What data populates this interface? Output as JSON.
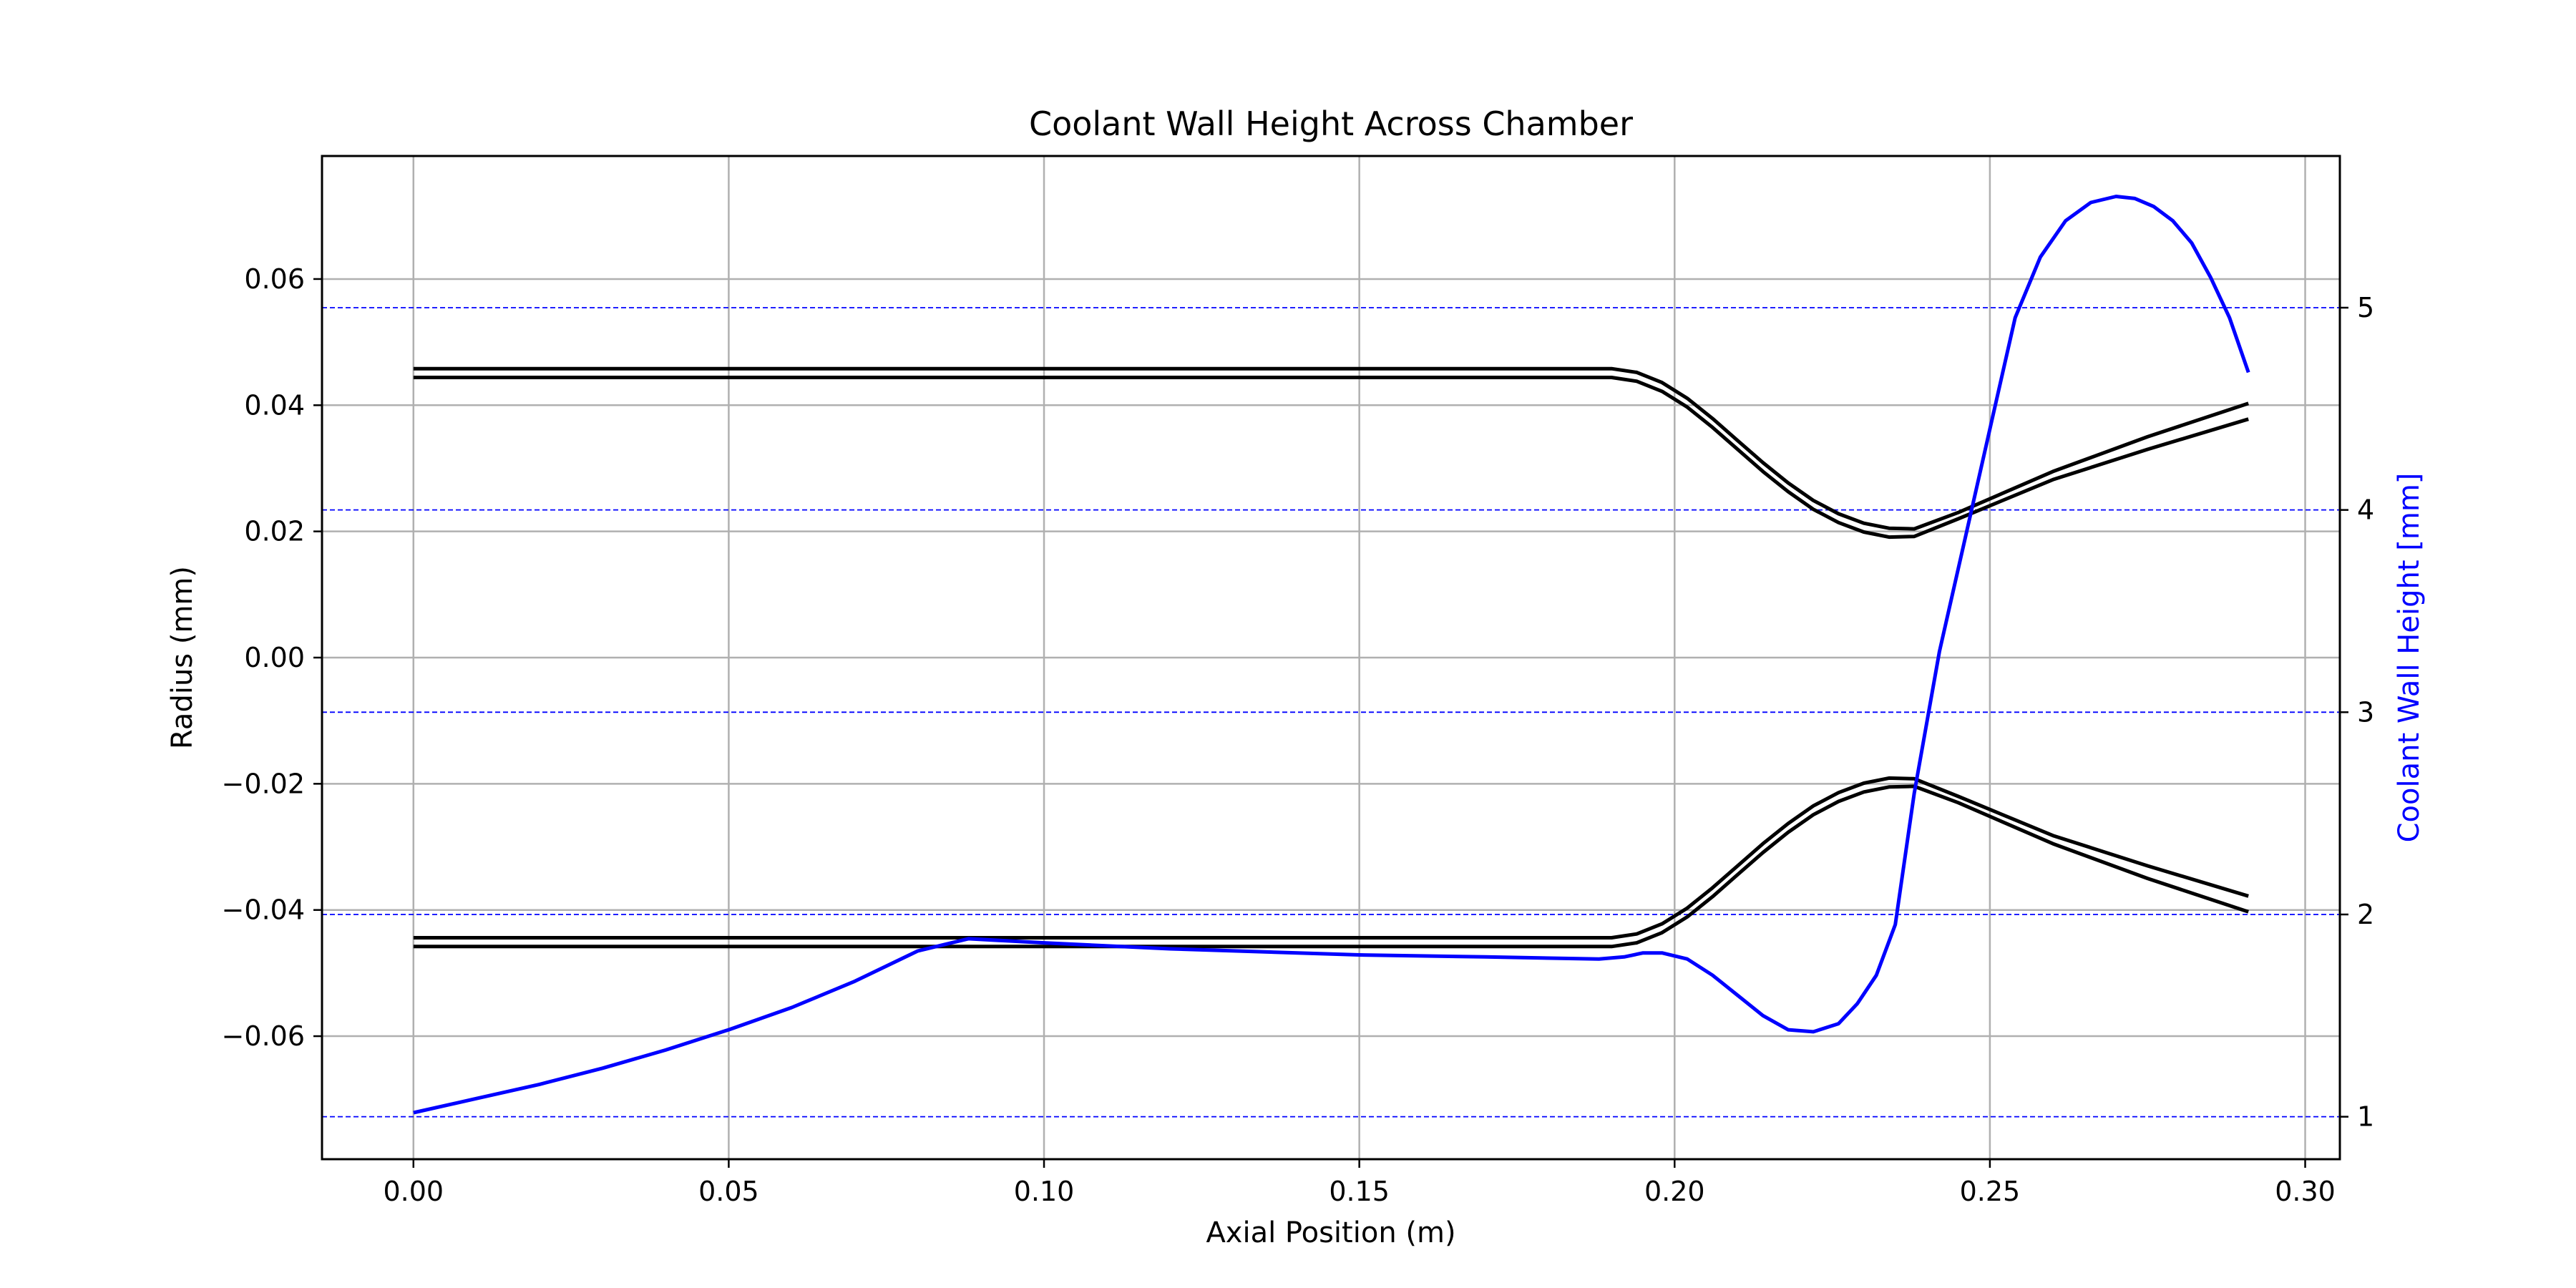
{
  "chart_data": {
    "type": "line",
    "title": "Coolant Wall Height Across Chamber",
    "xlabel": "Axial Position (m)",
    "ylabel": "Radius (mm)",
    "y2label": "Coolant Wall Height [mm]",
    "xlim": [
      -0.0145,
      0.3055
    ],
    "ylim": [
      -0.0795,
      0.0795
    ],
    "y2lim": [
      0.79,
      5.75
    ],
    "grid": true,
    "x_ticks": [
      0.0,
      0.05,
      0.1,
      0.15,
      0.2,
      0.25,
      0.3
    ],
    "x_tick_labels": [
      "0.00",
      "0.05",
      "0.10",
      "0.15",
      "0.20",
      "0.25",
      "0.30"
    ],
    "y_ticks": [
      0.06,
      0.04,
      0.02,
      0.0,
      -0.02,
      -0.04,
      -0.06
    ],
    "y_tick_labels": [
      "0.06",
      "0.04",
      "0.02",
      "0.00",
      "−0.02",
      "−0.04",
      "−0.06"
    ],
    "y2_ticks": [
      5,
      4,
      3,
      2,
      1
    ],
    "y2_tick_labels": [
      "5",
      "4",
      "3",
      "2",
      "1"
    ],
    "colors": {
      "contour": "#000000",
      "coolant": "#0000ff",
      "grid": "#b0b0b0"
    },
    "series": [
      {
        "axis": "left",
        "color": "#000000",
        "x": [
          0,
          0.19,
          0.194,
          0.198,
          0.202,
          0.206,
          0.21,
          0.214,
          0.218,
          0.222,
          0.226,
          0.23,
          0.234,
          0.238,
          0.245,
          0.26,
          0.275,
          0.291
        ],
        "y": [
          0.0458,
          0.0458,
          0.0452,
          0.0436,
          0.0411,
          0.0379,
          0.0344,
          0.0309,
          0.0277,
          0.0249,
          0.0228,
          0.0213,
          0.0205,
          0.0204,
          0.023,
          0.0295,
          0.035,
          0.0403
        ]
      },
      {
        "axis": "left",
        "color": "#000000",
        "x": [
          0,
          0.19,
          0.194,
          0.198,
          0.202,
          0.206,
          0.21,
          0.214,
          0.218,
          0.222,
          0.226,
          0.23,
          0.234,
          0.238,
          0.245,
          0.26,
          0.275,
          0.291
        ],
        "y": [
          0.0444,
          0.0444,
          0.0438,
          0.0422,
          0.0397,
          0.0365,
          0.033,
          0.0295,
          0.0263,
          0.0235,
          0.0214,
          0.0199,
          0.0191,
          0.0192,
          0.022,
          0.0282,
          0.033,
          0.0378
        ]
      },
      {
        "axis": "left",
        "color": "#000000",
        "x": [
          0,
          0.19,
          0.194,
          0.198,
          0.202,
          0.206,
          0.21,
          0.214,
          0.218,
          0.222,
          0.226,
          0.23,
          0.234,
          0.238,
          0.245,
          0.26,
          0.275,
          0.291
        ],
        "y": [
          -0.0444,
          -0.0444,
          -0.0438,
          -0.0422,
          -0.0397,
          -0.0365,
          -0.033,
          -0.0295,
          -0.0263,
          -0.0235,
          -0.0214,
          -0.0199,
          -0.0191,
          -0.0192,
          -0.022,
          -0.0282,
          -0.033,
          -0.0378
        ]
      },
      {
        "axis": "left",
        "color": "#000000",
        "x": [
          0,
          0.19,
          0.194,
          0.198,
          0.202,
          0.206,
          0.21,
          0.214,
          0.218,
          0.222,
          0.226,
          0.23,
          0.234,
          0.238,
          0.245,
          0.26,
          0.275,
          0.291
        ],
        "y": [
          -0.0458,
          -0.0458,
          -0.0452,
          -0.0436,
          -0.0411,
          -0.0379,
          -0.0344,
          -0.0309,
          -0.0277,
          -0.0249,
          -0.0228,
          -0.0213,
          -0.0205,
          -0.0204,
          -0.023,
          -0.0295,
          -0.035,
          -0.0403
        ]
      },
      {
        "axis": "right",
        "color": "#0000ff",
        "x": [
          0,
          0.01,
          0.02,
          0.03,
          0.04,
          0.05,
          0.06,
          0.07,
          0.08,
          0.088,
          0.1,
          0.12,
          0.15,
          0.17,
          0.188,
          0.192,
          0.195,
          0.198,
          0.202,
          0.206,
          0.21,
          0.214,
          0.218,
          0.222,
          0.226,
          0.229,
          0.232,
          0.235,
          0.238,
          0.242,
          0.246,
          0.25,
          0.254,
          0.258,
          0.262,
          0.266,
          0.27,
          0.273,
          0.276,
          0.279,
          0.282,
          0.285,
          0.288,
          0.291
        ],
        "y": [
          1.02,
          1.09,
          1.16,
          1.24,
          1.33,
          1.43,
          1.54,
          1.67,
          1.82,
          1.88,
          1.86,
          1.83,
          1.8,
          1.79,
          1.78,
          1.79,
          1.81,
          1.81,
          1.78,
          1.7,
          1.6,
          1.5,
          1.43,
          1.42,
          1.46,
          1.56,
          1.7,
          1.95,
          2.6,
          3.3,
          3.85,
          4.4,
          4.95,
          5.25,
          5.43,
          5.52,
          5.55,
          5.54,
          5.5,
          5.43,
          5.32,
          5.15,
          4.95,
          4.68
        ]
      }
    ]
  }
}
